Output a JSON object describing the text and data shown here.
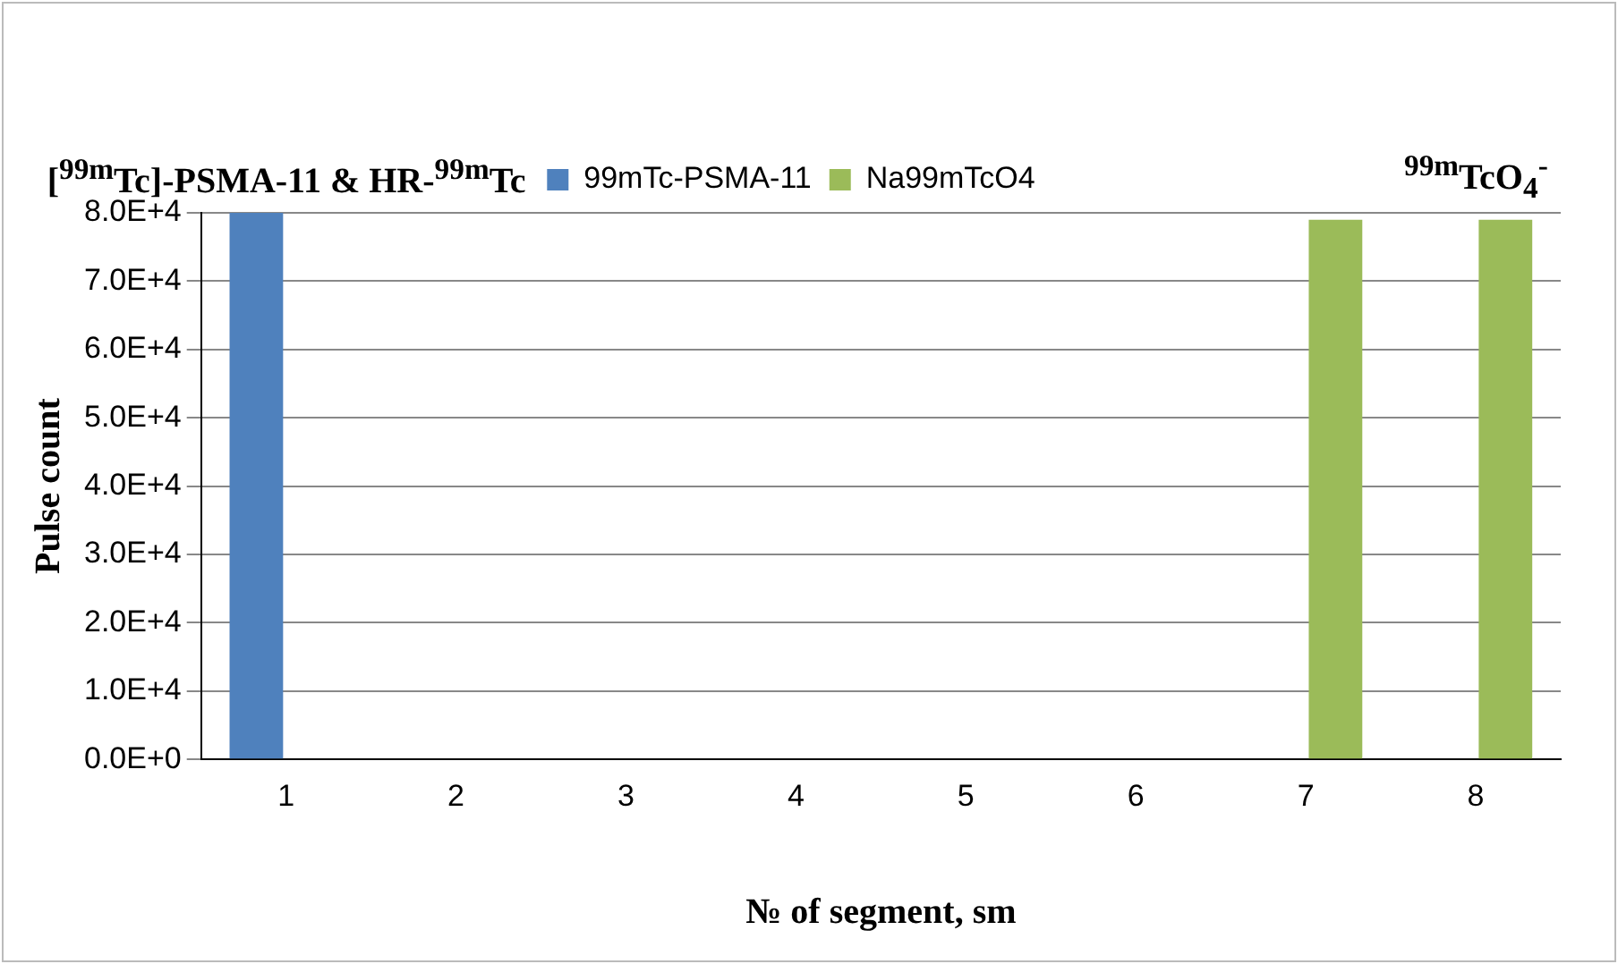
{
  "chart_data": {
    "type": "bar",
    "xlabel": "№ of segment, sm",
    "ylabel": "Pulse count",
    "categories": [
      "1",
      "2",
      "3",
      "4",
      "5",
      "6",
      "7",
      "8"
    ],
    "series": [
      {
        "name": "99mTc-PSMA-11",
        "color": "#4f81bd",
        "values": [
          80000,
          0,
          0,
          0,
          0,
          0,
          0,
          0
        ]
      },
      {
        "name": "Na99mTcO4",
        "color": "#9bbb59",
        "values": [
          0,
          0,
          0,
          0,
          0,
          0,
          79000,
          79000
        ]
      }
    ],
    "ylim": [
      0,
      80000
    ],
    "yticks": [
      {
        "value": 0,
        "label": "0.0E+0"
      },
      {
        "value": 10000,
        "label": "1.0E+4"
      },
      {
        "value": 20000,
        "label": "2.0E+4"
      },
      {
        "value": 30000,
        "label": "3.0E+4"
      },
      {
        "value": 40000,
        "label": "4.0E+4"
      },
      {
        "value": 50000,
        "label": "5.0E+4"
      },
      {
        "value": 60000,
        "label": "6.0E+4"
      },
      {
        "value": 70000,
        "label": "7.0E+4"
      },
      {
        "value": 80000,
        "label": "8.0E+4"
      }
    ],
    "grid": "y",
    "legend": "top",
    "annotations": [
      {
        "text": "[$^{99m}$Tc]-PSMA-11 & HR-$^{99m}$Tc",
        "x": "1",
        "y": 80000
      },
      {
        "text": "$^{99m}$TcO$_{4}$$^{-}$",
        "x": "8",
        "y": 79000
      }
    ]
  }
}
